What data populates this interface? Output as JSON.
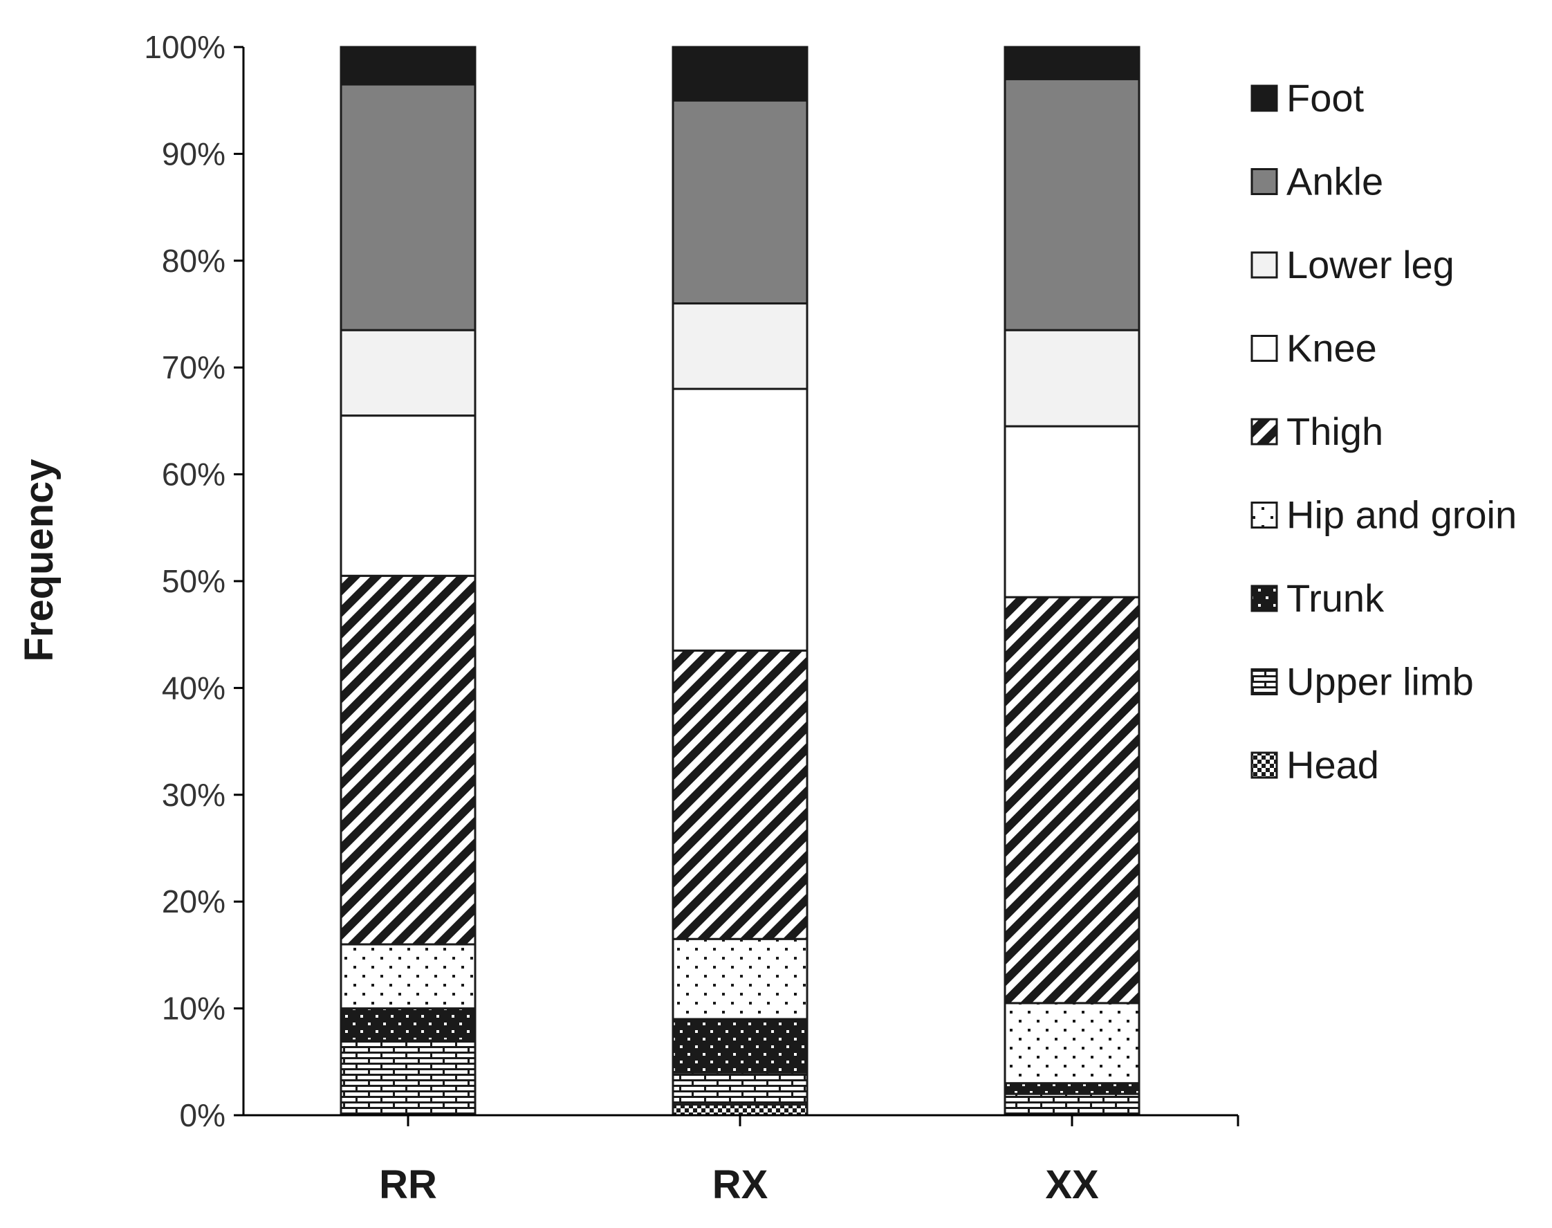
{
  "chart_data": {
    "type": "bar",
    "stacked": true,
    "percent": true,
    "title": "",
    "xlabel": "",
    "ylabel": "Frequency",
    "ylim": [
      0,
      100
    ],
    "yticks": [
      "0%",
      "10%",
      "20%",
      "30%",
      "40%",
      "50%",
      "60%",
      "70%",
      "80%",
      "90%",
      "100%"
    ],
    "categories": [
      "RR",
      "RX",
      "XX"
    ],
    "legend_position": "right",
    "series": [
      {
        "name": "Head",
        "pattern": "checker",
        "values": [
          0,
          1,
          0
        ]
      },
      {
        "name": "Upper limb",
        "pattern": "brick",
        "values": [
          7,
          3,
          2
        ]
      },
      {
        "name": "Trunk",
        "pattern": "dark-dots",
        "values": [
          3,
          5,
          1
        ]
      },
      {
        "name": "Hip and groin",
        "pattern": "light-dots",
        "values": [
          6,
          7.5,
          7.5
        ]
      },
      {
        "name": "Thigh",
        "pattern": "diagonal-stripes",
        "values": [
          34.5,
          27,
          38
        ]
      },
      {
        "name": "Knee",
        "pattern": "white",
        "values": [
          15,
          24.5,
          16
        ]
      },
      {
        "name": "Lower leg",
        "pattern": "light-gray",
        "values": [
          8,
          8,
          9
        ]
      },
      {
        "name": "Ankle",
        "pattern": "gray",
        "values": [
          23,
          19,
          23.5
        ]
      },
      {
        "name": "Foot",
        "pattern": "black",
        "values": [
          3.5,
          5,
          3
        ]
      }
    ],
    "colors": {
      "axis": "#000000",
      "gray": "#808080",
      "light_gray": "#f2f2f2",
      "black": "#1a1a1a",
      "white": "#ffffff"
    }
  }
}
